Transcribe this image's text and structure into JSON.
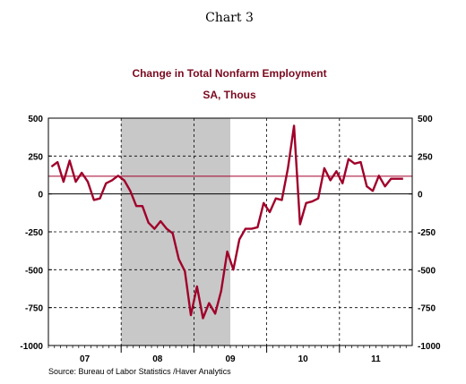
{
  "header": {
    "chart_number": "Chart 3"
  },
  "footer": {
    "source": "Source:  Bureau of Labor Statistics /Haver Analytics"
  },
  "colors": {
    "series": "#a0002a",
    "reference_line": "#a0002a",
    "recession": "#c8c8c8",
    "title": "#7a0a1f"
  },
  "chart_data": {
    "type": "line",
    "title": "Change in Total Nonfarm Employment",
    "subtitle": "SA, Thous",
    "xlabel": "",
    "ylabel": "",
    "ylim": [
      -1000,
      500
    ],
    "yticks": [
      500,
      250,
      0,
      -250,
      -500,
      -750,
      -1000
    ],
    "ytick_labels": [
      "500",
      "250",
      "0",
      "-250",
      "-500",
      "-750",
      "-1000"
    ],
    "x_tick_labels": [
      "07",
      "08",
      "09",
      "10",
      "11"
    ],
    "x_range": [
      "2007-01",
      "2011-12"
    ],
    "grid": true,
    "reference_line": 117,
    "recession_shading": [
      "2008-01",
      "2009-06"
    ],
    "series": [
      {
        "x": [
          "2007-01",
          "2007-02",
          "2007-03",
          "2007-04",
          "2007-05",
          "2007-06",
          "2007-07",
          "2007-08",
          "2007-09",
          "2007-10",
          "2007-11",
          "2007-12",
          "2008-01",
          "2008-02",
          "2008-03",
          "2008-04",
          "2008-05",
          "2008-06",
          "2008-07",
          "2008-08",
          "2008-09",
          "2008-10",
          "2008-11",
          "2008-12",
          "2009-01",
          "2009-02",
          "2009-03",
          "2009-04",
          "2009-05",
          "2009-06",
          "2009-07",
          "2009-08",
          "2009-09",
          "2009-10",
          "2009-11",
          "2009-12",
          "2010-01",
          "2010-02",
          "2010-03",
          "2010-04",
          "2010-05",
          "2010-06",
          "2010-07",
          "2010-08",
          "2010-09",
          "2010-10",
          "2010-11",
          "2010-12",
          "2011-01",
          "2011-02",
          "2011-03",
          "2011-04",
          "2011-05",
          "2011-06",
          "2011-07",
          "2011-08",
          "2011-09",
          "2011-10",
          "2011-11"
        ],
        "values": [
          180,
          210,
          80,
          220,
          80,
          140,
          80,
          -40,
          -30,
          70,
          90,
          120,
          90,
          20,
          -80,
          -80,
          -190,
          -230,
          -180,
          -230,
          -260,
          -430,
          -510,
          -800,
          -610,
          -820,
          -720,
          -790,
          -640,
          -380,
          -500,
          -300,
          -230,
          -230,
          -220,
          -60,
          -120,
          -30,
          -40,
          170,
          450,
          -200,
          -60,
          -50,
          -30,
          170,
          90,
          150,
          70,
          230,
          200,
          210,
          50,
          20,
          120,
          50,
          100,
          100,
          100
        ]
      }
    ]
  }
}
